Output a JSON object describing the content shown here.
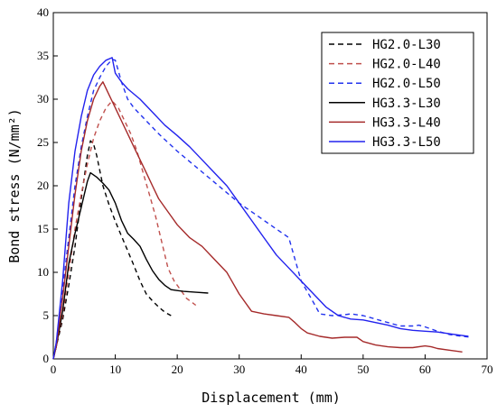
{
  "chart_data": {
    "type": "line",
    "xlabel": "Displacement (mm)",
    "ylabel": "Bond stress (N/mm²)",
    "xlim": [
      0,
      70
    ],
    "ylim": [
      0,
      40
    ],
    "x_ticks": [
      0,
      10,
      20,
      30,
      40,
      50,
      60,
      70
    ],
    "y_ticks": [
      0,
      5,
      10,
      15,
      20,
      25,
      30,
      35,
      40
    ],
    "grid": false,
    "legend_position": "top-right",
    "series": [
      {
        "name": "HG2.0-L30",
        "color": "#000000",
        "dash": "dashed",
        "points": [
          [
            0,
            0
          ],
          [
            0.5,
            1.5
          ],
          [
            1.5,
            4.5
          ],
          [
            2.5,
            8.5
          ],
          [
            3.5,
            13
          ],
          [
            4.5,
            18.5
          ],
          [
            5.5,
            23.5
          ],
          [
            6,
            25.2
          ],
          [
            6.5,
            24.8
          ],
          [
            7,
            23.5
          ],
          [
            8,
            20
          ],
          [
            9,
            17.8
          ],
          [
            10,
            15.9
          ],
          [
            11,
            14.2
          ],
          [
            12,
            12.5
          ],
          [
            13,
            10.8
          ],
          [
            14,
            9
          ],
          [
            15,
            7.5
          ],
          [
            16,
            6.7
          ],
          [
            17,
            6
          ],
          [
            18,
            5.4
          ],
          [
            19,
            5
          ]
        ]
      },
      {
        "name": "HG2.0-L40",
        "color": "#c0504d",
        "dash": "dashed",
        "points": [
          [
            0,
            0
          ],
          [
            0.5,
            1.5
          ],
          [
            1.5,
            5
          ],
          [
            2.5,
            10
          ],
          [
            3.5,
            15
          ],
          [
            4.5,
            19
          ],
          [
            5.5,
            22.5
          ],
          [
            6.5,
            25.5
          ],
          [
            7.5,
            27.5
          ],
          [
            8.5,
            29
          ],
          [
            9.5,
            29.8
          ],
          [
            10.5,
            29
          ],
          [
            11.5,
            27.5
          ],
          [
            12.5,
            26
          ],
          [
            13.5,
            24
          ],
          [
            14.5,
            21.5
          ],
          [
            15.5,
            19
          ],
          [
            16.5,
            16.5
          ],
          [
            17.5,
            13.5
          ],
          [
            18.5,
            10.5
          ],
          [
            19.5,
            9
          ],
          [
            20.5,
            8
          ],
          [
            21.5,
            7
          ],
          [
            23,
            6.2
          ]
        ]
      },
      {
        "name": "HG2.0-L50",
        "color": "#2233ee",
        "dash": "dashed",
        "points": [
          [
            0,
            0
          ],
          [
            0.5,
            2
          ],
          [
            1.5,
            8
          ],
          [
            2.5,
            14
          ],
          [
            3.5,
            20
          ],
          [
            4.5,
            24.5
          ],
          [
            5.5,
            28
          ],
          [
            6.5,
            31
          ],
          [
            7.5,
            32.5
          ],
          [
            8.5,
            33.8
          ],
          [
            9.5,
            34.6
          ],
          [
            10,
            34.5
          ],
          [
            11,
            32
          ],
          [
            12,
            30
          ],
          [
            13,
            29
          ],
          [
            15,
            27.5
          ],
          [
            17,
            26
          ],
          [
            20,
            24
          ],
          [
            25,
            21
          ],
          [
            30,
            18
          ],
          [
            35,
            15.5
          ],
          [
            38,
            14
          ],
          [
            40,
            9
          ],
          [
            42,
            6.5
          ],
          [
            43,
            5.2
          ],
          [
            45,
            5
          ],
          [
            47,
            5.1
          ],
          [
            48,
            5.2
          ],
          [
            50,
            5
          ],
          [
            52,
            4.6
          ],
          [
            54,
            4.2
          ],
          [
            56,
            3.8
          ],
          [
            58,
            3.8
          ],
          [
            59,
            3.9
          ],
          [
            60,
            3.7
          ],
          [
            62,
            3.2
          ],
          [
            64,
            2.8
          ],
          [
            66,
            2.6
          ],
          [
            67.5,
            2.5
          ]
        ]
      },
      {
        "name": "HG3.3-L30",
        "color": "#000000",
        "dash": "solid",
        "points": [
          [
            0,
            0
          ],
          [
            0.5,
            1.5
          ],
          [
            1.5,
            5.5
          ],
          [
            2.5,
            11
          ],
          [
            3.5,
            14.5
          ],
          [
            4.5,
            17.5
          ],
          [
            5.5,
            20.5
          ],
          [
            6,
            21.5
          ],
          [
            7,
            21
          ],
          [
            8,
            20.3
          ],
          [
            9,
            19.5
          ],
          [
            10,
            18
          ],
          [
            11,
            16
          ],
          [
            12,
            14.5
          ],
          [
            13,
            13.8
          ],
          [
            14,
            13
          ],
          [
            15,
            11.5
          ],
          [
            16,
            10.2
          ],
          [
            17,
            9.2
          ],
          [
            18,
            8.5
          ],
          [
            19,
            8
          ],
          [
            20,
            7.9
          ],
          [
            21,
            7.8
          ],
          [
            23,
            7.7
          ],
          [
            25,
            7.6
          ]
        ]
      },
      {
        "name": "HG3.3-L40",
        "color": "#a52a2a",
        "dash": "solid",
        "points": [
          [
            0,
            0
          ],
          [
            0.5,
            1.5
          ],
          [
            1.5,
            7
          ],
          [
            2.5,
            13
          ],
          [
            3.5,
            19
          ],
          [
            4.5,
            24
          ],
          [
            5.5,
            27.5
          ],
          [
            6.5,
            30
          ],
          [
            7.5,
            31.5
          ],
          [
            8,
            32
          ],
          [
            9,
            30.5
          ],
          [
            10,
            29
          ],
          [
            11,
            27.5
          ],
          [
            12,
            26
          ],
          [
            13,
            24.5
          ],
          [
            14,
            23
          ],
          [
            15,
            21.5
          ],
          [
            16,
            20
          ],
          [
            17,
            18.5
          ],
          [
            18,
            17.5
          ],
          [
            19,
            16.5
          ],
          [
            20,
            15.5
          ],
          [
            22,
            14
          ],
          [
            24,
            13
          ],
          [
            26,
            11.5
          ],
          [
            28,
            10
          ],
          [
            30,
            7.5
          ],
          [
            32,
            5.5
          ],
          [
            34,
            5.2
          ],
          [
            36,
            5
          ],
          [
            38,
            4.8
          ],
          [
            39,
            4.2
          ],
          [
            40,
            3.5
          ],
          [
            41,
            3
          ],
          [
            43,
            2.6
          ],
          [
            45,
            2.4
          ],
          [
            47,
            2.5
          ],
          [
            49,
            2.5
          ],
          [
            50,
            2
          ],
          [
            52,
            1.6
          ],
          [
            54,
            1.4
          ],
          [
            56,
            1.3
          ],
          [
            58,
            1.3
          ],
          [
            60,
            1.5
          ],
          [
            61,
            1.4
          ],
          [
            62,
            1.2
          ],
          [
            64,
            1
          ],
          [
            66,
            0.8
          ]
        ]
      },
      {
        "name": "HG3.3-L50",
        "color": "#2222ee",
        "dash": "solid",
        "points": [
          [
            0,
            0
          ],
          [
            0.5,
            2
          ],
          [
            1.5,
            9
          ],
          [
            2.5,
            18
          ],
          [
            3.5,
            24
          ],
          [
            4.5,
            28
          ],
          [
            5.5,
            31
          ],
          [
            6.5,
            32.8
          ],
          [
            7.5,
            33.8
          ],
          [
            8.5,
            34.5
          ],
          [
            9.5,
            34.8
          ],
          [
            10,
            33
          ],
          [
            11,
            32
          ],
          [
            12,
            31.2
          ],
          [
            14,
            30
          ],
          [
            16,
            28.5
          ],
          [
            18,
            27
          ],
          [
            20,
            25.8
          ],
          [
            22,
            24.5
          ],
          [
            24,
            23
          ],
          [
            26,
            21.5
          ],
          [
            28,
            20
          ],
          [
            30,
            18
          ],
          [
            32,
            16
          ],
          [
            34,
            14
          ],
          [
            36,
            12
          ],
          [
            38,
            10.5
          ],
          [
            40,
            9
          ],
          [
            42,
            7.5
          ],
          [
            44,
            6
          ],
          [
            46,
            5
          ],
          [
            48,
            4.6
          ],
          [
            50,
            4.5
          ],
          [
            52,
            4.2
          ],
          [
            54,
            3.9
          ],
          [
            56,
            3.5
          ],
          [
            58,
            3.3
          ],
          [
            60,
            3.2
          ],
          [
            62,
            3.1
          ],
          [
            64,
            2.9
          ],
          [
            66,
            2.7
          ],
          [
            67,
            2.6
          ]
        ]
      }
    ]
  }
}
